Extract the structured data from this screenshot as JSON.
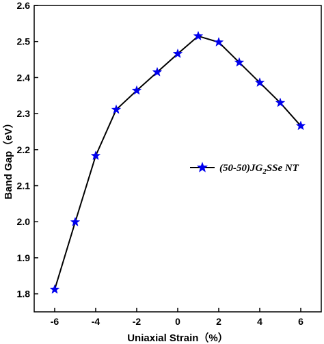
{
  "chart_data": {
    "type": "line",
    "xlabel": "Uniaxial Strain（%）",
    "ylabel": "Band Gap（eV）",
    "xlim": [
      -7,
      7
    ],
    "ylim": [
      1.75,
      2.6
    ],
    "x_ticks": [
      "-6",
      "-4",
      "-2",
      "0",
      "2",
      "4",
      "6"
    ],
    "y_ticks": [
      "1.8",
      "1.9",
      "2.0",
      "2.1",
      "2.2",
      "2.3",
      "2.4",
      "2.5",
      "2.6"
    ],
    "legend_position": "right",
    "grid": false,
    "series": [
      {
        "name_main": "(50-50)JG",
        "name_sub": "2",
        "name_rest": "SSe NT",
        "color": "#0000ee",
        "marker": "star",
        "x": [
          -6,
          -5,
          -4,
          -3,
          -2,
          -1,
          0,
          1,
          2,
          3,
          4,
          5,
          6
        ],
        "y": [
          1.812,
          1.999,
          2.183,
          2.311,
          2.364,
          2.415,
          2.466,
          2.515,
          2.498,
          2.442,
          2.386,
          2.33,
          2.266
        ]
      }
    ]
  }
}
